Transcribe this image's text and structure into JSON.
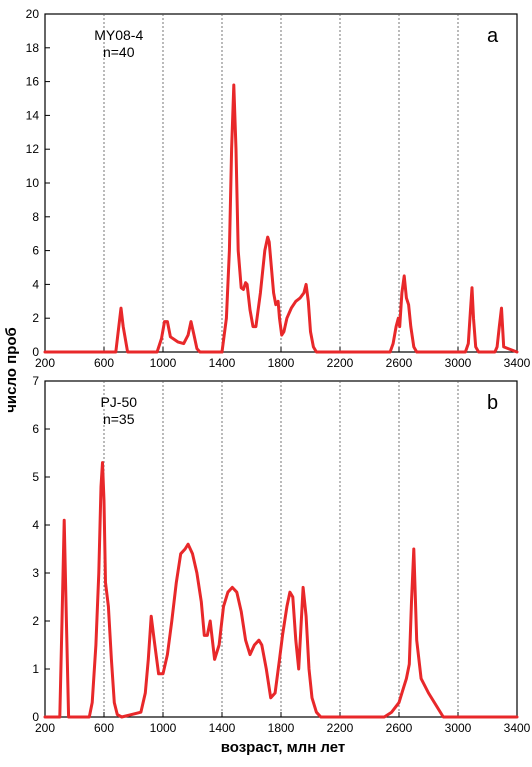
{
  "chart_data": [
    {
      "type": "line",
      "panel_letter": "a",
      "sample": "MY08-4",
      "n_label": "n=40",
      "x_ticks": [
        "200",
        "600",
        "1000",
        "1400",
        "1800",
        "2200",
        "2600",
        "3000",
        "3400"
      ],
      "y_ticks": [
        "0",
        "2",
        "4",
        "6",
        "8",
        "10",
        "12",
        "14",
        "16",
        "18",
        "20"
      ],
      "xlim": [
        200,
        3400
      ],
      "ylim": [
        0,
        20
      ],
      "vlines": [
        600,
        1000,
        1400,
        1800,
        2200,
        2600,
        3000
      ],
      "color": "#e8282a",
      "x": [
        200,
        680,
        700,
        715,
        730,
        760,
        960,
        990,
        1010,
        1030,
        1050,
        1100,
        1140,
        1170,
        1190,
        1210,
        1230,
        1250,
        1400,
        1430,
        1450,
        1465,
        1480,
        1495,
        1510,
        1530,
        1545,
        1560,
        1570,
        1590,
        1610,
        1630,
        1660,
        1690,
        1710,
        1720,
        1735,
        1750,
        1765,
        1780,
        1790,
        1805,
        1820,
        1840,
        1870,
        1900,
        1930,
        1955,
        1970,
        1985,
        2000,
        2020,
        2040,
        2540,
        2560,
        2580,
        2595,
        2605,
        2620,
        2635,
        2650,
        2665,
        2680,
        2700,
        2720,
        3050,
        3070,
        3085,
        3095,
        3105,
        3120,
        3140,
        3250,
        3265,
        3280,
        3295,
        3310,
        3400
      ],
      "y": [
        0,
        0,
        1.5,
        2.6,
        1.5,
        0,
        0,
        0.8,
        1.8,
        1.8,
        0.9,
        0.6,
        0.5,
        1.0,
        1.8,
        1.0,
        0.2,
        0,
        0,
        2.0,
        6.0,
        12.0,
        15.8,
        12.0,
        6.0,
        3.8,
        3.7,
        4.1,
        4.0,
        2.5,
        1.5,
        1.5,
        3.5,
        6.0,
        6.8,
        6.5,
        5.0,
        3.5,
        2.8,
        3.0,
        2.0,
        1.0,
        1.2,
        2.0,
        2.6,
        3.0,
        3.2,
        3.5,
        4.0,
        3.0,
        1.2,
        0.3,
        0,
        0,
        0.5,
        1.5,
        2.0,
        1.5,
        3.5,
        4.5,
        3.2,
        2.8,
        1.5,
        0.3,
        0,
        0,
        0.5,
        2.5,
        3.8,
        2.0,
        0.3,
        0,
        0,
        0.3,
        1.5,
        2.6,
        0.3,
        0
      ]
    },
    {
      "type": "line",
      "panel_letter": "b",
      "sample": "PJ-50",
      "n_label": "n=35",
      "x_ticks": [
        "200",
        "600",
        "1000",
        "1400",
        "1800",
        "2200",
        "2600",
        "3000",
        "3400"
      ],
      "y_ticks": [
        "0",
        "1",
        "2",
        "3",
        "4",
        "5",
        "6",
        "7"
      ],
      "xlim": [
        200,
        3400
      ],
      "ylim": [
        0,
        7
      ],
      "vlines": [
        600,
        1000,
        1400,
        1800,
        2200,
        2600,
        3000
      ],
      "color": "#e8282a",
      "x": [
        200,
        300,
        315,
        330,
        345,
        360,
        500,
        520,
        545,
        565,
        580,
        590,
        600,
        610,
        630,
        650,
        670,
        690,
        720,
        850,
        880,
        900,
        920,
        940,
        970,
        1000,
        1030,
        1060,
        1090,
        1120,
        1150,
        1170,
        1200,
        1230,
        1260,
        1280,
        1300,
        1320,
        1350,
        1380,
        1410,
        1440,
        1470,
        1500,
        1530,
        1560,
        1590,
        1620,
        1650,
        1670,
        1700,
        1730,
        1760,
        1790,
        1810,
        1840,
        1860,
        1880,
        1900,
        1920,
        1950,
        1970,
        1990,
        2010,
        2040,
        2070,
        2500,
        2550,
        2600,
        2630,
        2650,
        2670,
        2685,
        2700,
        2720,
        2750,
        2800,
        2900,
        3400
      ],
      "y": [
        0,
        0,
        2.0,
        4.1,
        2.0,
        0,
        0,
        0.3,
        1.5,
        3.0,
        4.8,
        5.3,
        4.5,
        2.8,
        2.3,
        1.2,
        0.3,
        0.05,
        0,
        0.1,
        0.5,
        1.2,
        2.1,
        1.6,
        0.9,
        0.9,
        1.3,
        2.0,
        2.8,
        3.4,
        3.5,
        3.6,
        3.4,
        3.0,
        2.4,
        1.7,
        1.7,
        2.0,
        1.2,
        1.5,
        2.3,
        2.6,
        2.7,
        2.6,
        2.2,
        1.6,
        1.3,
        1.5,
        1.6,
        1.5,
        1.0,
        0.4,
        0.5,
        1.2,
        1.7,
        2.3,
        2.6,
        2.5,
        1.6,
        1.0,
        2.7,
        2.1,
        1.0,
        0.4,
        0.1,
        0,
        0,
        0.1,
        0.3,
        0.6,
        0.8,
        1.1,
        2.4,
        3.5,
        1.6,
        0.8,
        0.5,
        0,
        0
      ]
    }
  ],
  "axes": {
    "ylabel": "число проб",
    "xlabel": "возраст, млн  лет"
  }
}
